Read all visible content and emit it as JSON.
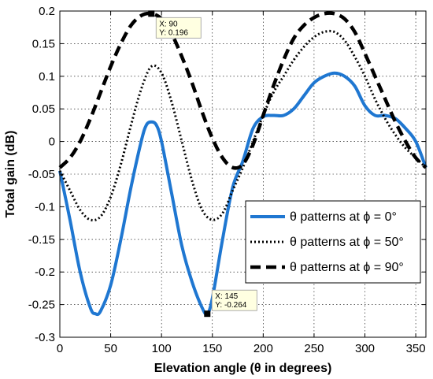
{
  "chart_data": {
    "type": "line",
    "title": "",
    "xlabel": "Elevation angle (θ in degrees)",
    "ylabel": "Total gain (dB)",
    "xlim": [
      0,
      360
    ],
    "ylim": [
      -0.3,
      0.2
    ],
    "xticks": [
      0,
      50,
      100,
      150,
      200,
      250,
      300,
      350
    ],
    "xtick_labels": [
      "0",
      "50",
      "100",
      "150",
      "200",
      "250",
      "300",
      "350"
    ],
    "yticks": [
      -0.3,
      -0.25,
      -0.2,
      -0.15,
      -0.1,
      -0.05,
      0,
      0.05,
      0.1,
      0.15,
      0.2
    ],
    "ytick_labels": [
      "-0.3",
      "-0.25",
      "-0.2",
      "-0.15",
      "-0.1",
      "-0.05",
      "0",
      "0.05",
      "0.1",
      "0.15",
      "0.2"
    ],
    "grid": true,
    "legend_position": "lower-right",
    "series": [
      {
        "name": "θ patterns at ϕ = 0°",
        "color": "#1f77d1",
        "style": "solid",
        "x": [
          0,
          10,
          20,
          30,
          35,
          40,
          50,
          60,
          70,
          80,
          85,
          90,
          95,
          100,
          110,
          120,
          130,
          140,
          145,
          150,
          160,
          170,
          180,
          190,
          200,
          210,
          220,
          230,
          240,
          250,
          260,
          270,
          280,
          290,
          300,
          310,
          320,
          330,
          340,
          350,
          360
        ],
        "values": [
          -0.045,
          -0.12,
          -0.2,
          -0.255,
          -0.264,
          -0.26,
          -0.22,
          -0.15,
          -0.07,
          0.0,
          0.025,
          0.03,
          0.025,
          0.0,
          -0.08,
          -0.16,
          -0.215,
          -0.255,
          -0.264,
          -0.24,
          -0.15,
          -0.07,
          -0.03,
          0.02,
          0.038,
          0.04,
          0.04,
          0.05,
          0.07,
          0.09,
          0.1,
          0.105,
          0.1,
          0.085,
          0.055,
          0.04,
          0.04,
          0.035,
          0.02,
          0.0,
          -0.04
        ]
      },
      {
        "name": "θ patterns at ϕ = 50°",
        "color": "#000000",
        "style": "dotted",
        "x": [
          0,
          10,
          20,
          30,
          40,
          50,
          60,
          70,
          80,
          90,
          100,
          110,
          120,
          130,
          140,
          150,
          160,
          170,
          180,
          190,
          200,
          210,
          220,
          230,
          240,
          250,
          260,
          270,
          280,
          290,
          300,
          310,
          320,
          330,
          340,
          350,
          360
        ],
        "values": [
          -0.045,
          -0.075,
          -0.105,
          -0.12,
          -0.115,
          -0.085,
          -0.035,
          0.025,
          0.08,
          0.115,
          0.105,
          0.06,
          0.0,
          -0.06,
          -0.105,
          -0.12,
          -0.11,
          -0.075,
          -0.04,
          0.0,
          0.04,
          0.075,
          0.1,
          0.125,
          0.145,
          0.16,
          0.168,
          0.168,
          0.155,
          0.13,
          0.1,
          0.065,
          0.035,
          0.01,
          -0.01,
          -0.025,
          -0.04
        ]
      },
      {
        "name": "θ patterns at ϕ = 90°",
        "color": "#000000",
        "style": "dashed",
        "x": [
          0,
          10,
          20,
          30,
          40,
          50,
          60,
          70,
          80,
          90,
          100,
          110,
          120,
          130,
          140,
          150,
          160,
          170,
          180,
          190,
          200,
          210,
          220,
          230,
          240,
          250,
          260,
          270,
          280,
          290,
          300,
          310,
          320,
          330,
          340,
          350,
          360
        ],
        "values": [
          -0.04,
          -0.025,
          0.0,
          0.035,
          0.075,
          0.115,
          0.15,
          0.178,
          0.193,
          0.196,
          0.188,
          0.165,
          0.13,
          0.09,
          0.045,
          0.005,
          -0.025,
          -0.04,
          -0.035,
          -0.005,
          0.04,
          0.085,
          0.125,
          0.158,
          0.178,
          0.19,
          0.196,
          0.196,
          0.188,
          0.168,
          0.135,
          0.1,
          0.065,
          0.03,
          0.0,
          -0.025,
          -0.04
        ]
      }
    ],
    "annotations": [
      {
        "x": 90,
        "y": 0.196,
        "text_x": "X: 90",
        "text_y": "Y: 0.196"
      },
      {
        "x": 145,
        "y": -0.264,
        "text_x": "X: 145",
        "text_y": "Y: -0.264"
      }
    ]
  }
}
